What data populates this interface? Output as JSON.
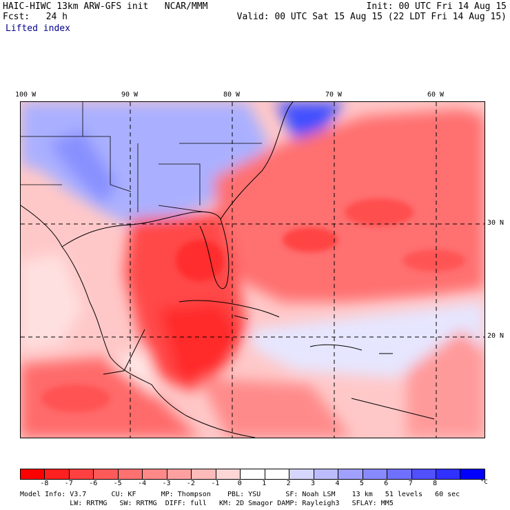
{
  "header": {
    "title": "HAIC-HIWC 13km ARW-GFS init   NCAR/MMM",
    "forecast": "Fcst:   24 h",
    "field": "Lifted index",
    "init": "Init: 00 UTC Fri 14 Aug 15",
    "valid": "Valid: 00 UTC Sat 15 Aug 15 (22 LDT Fri 14 Aug 15)"
  },
  "map": {
    "lon_labels": [
      "100 W",
      "90 W",
      "80 W",
      "70 W",
      "60 W"
    ],
    "lat_labels": [
      "30 N",
      "20 N"
    ],
    "grid_style": "dashed"
  },
  "colorbar": {
    "colors": [
      "#ff0000",
      "#ff2020",
      "#ff4040",
      "#ff5a5a",
      "#ff7070",
      "#ff8888",
      "#ffa0a0",
      "#ffbaba",
      "#ffd6d6",
      "#ffffff",
      "#ffffff",
      "#d6d6ff",
      "#bcbcff",
      "#a0a0ff",
      "#8888ff",
      "#7070ff",
      "#5050ff",
      "#3030ff",
      "#0000ff"
    ],
    "ticks": [
      "-8",
      "-7",
      "-6",
      "-5",
      "-4",
      "-3",
      "-2",
      "-1",
      "0",
      "1",
      "2",
      "3",
      "4",
      "5",
      "6",
      "7",
      "8"
    ],
    "unit": "°C"
  },
  "info": {
    "line1": "Model Info: V3.7      CU: KF      MP: Thompson    PBL: YSU      SF: Noah LSM    13 km   51 levels   60 sec",
    "line2": "            LW: RRTMG   SW: RRTMG  DIFF: full   KM: 2D Smagor DAMP: Rayleigh3   SFLAY: MM5"
  },
  "colors": {
    "negative": "#ff5a5a",
    "positive": "#8888ff",
    "field_label": "#00008b"
  }
}
